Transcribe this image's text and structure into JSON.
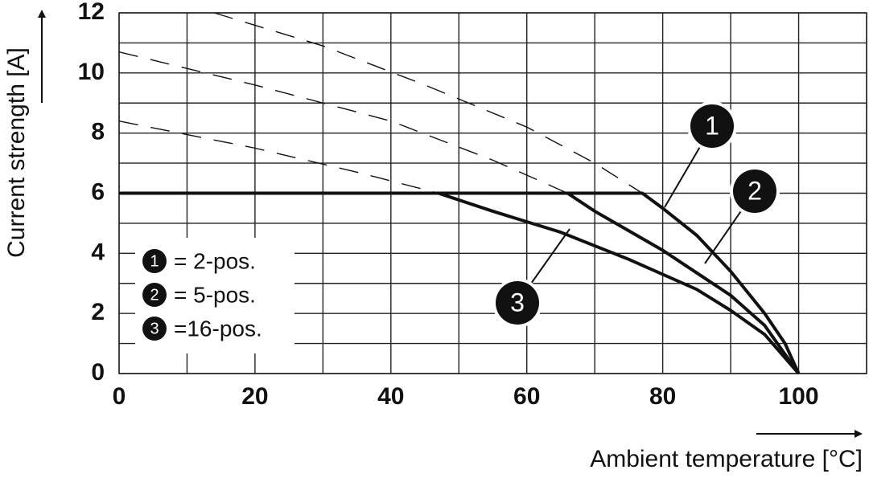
{
  "chart_data": {
    "type": "line",
    "xlabel": "Ambient temperature [°C]",
    "ylabel": "Current strength [A]",
    "xlim": [
      0,
      110
    ],
    "ylim": [
      0,
      12
    ],
    "xticks": [
      0,
      20,
      40,
      60,
      80,
      100
    ],
    "yticks": [
      0,
      2,
      4,
      6,
      8,
      10,
      12
    ],
    "xgrid": [
      0,
      10,
      20,
      30,
      40,
      50,
      60,
      70,
      80,
      90,
      100,
      110
    ],
    "ygrid": [
      0,
      1,
      2,
      3,
      4,
      5,
      6,
      7,
      8,
      9,
      10,
      11,
      12
    ],
    "color": "#111111",
    "series": [
      {
        "marker": "1",
        "name": "= 2-pos.",
        "x": [
          0,
          77,
          80,
          85,
          90,
          95,
          98,
          100
        ],
        "values": [
          6,
          6,
          5.5,
          4.6,
          3.4,
          2,
          1,
          0
        ],
        "dashed_x": [
          14,
          30,
          45,
          60,
          70,
          77
        ],
        "dashed_values": [
          12,
          10.9,
          9.6,
          8.2,
          7,
          6
        ]
      },
      {
        "marker": "2",
        "name": "= 5-pos.",
        "x": [
          66,
          70,
          80,
          90,
          95,
          100
        ],
        "values": [
          6,
          5.4,
          4.1,
          2.6,
          1.6,
          0
        ],
        "dashed_x": [
          0,
          20,
          40,
          55,
          66
        ],
        "dashed_values": [
          10.7,
          9.6,
          8.4,
          7.1,
          6
        ]
      },
      {
        "marker": "3",
        "name": "=16-pos.",
        "x": [
          47,
          55,
          65,
          75,
          85,
          90,
          95,
          100
        ],
        "values": [
          6,
          5.4,
          4.7,
          3.8,
          2.8,
          2.1,
          1.3,
          0
        ],
        "dashed_x": [
          0,
          20,
          35,
          47
        ],
        "dashed_values": [
          8.4,
          7.5,
          6.7,
          6
        ]
      }
    ]
  }
}
